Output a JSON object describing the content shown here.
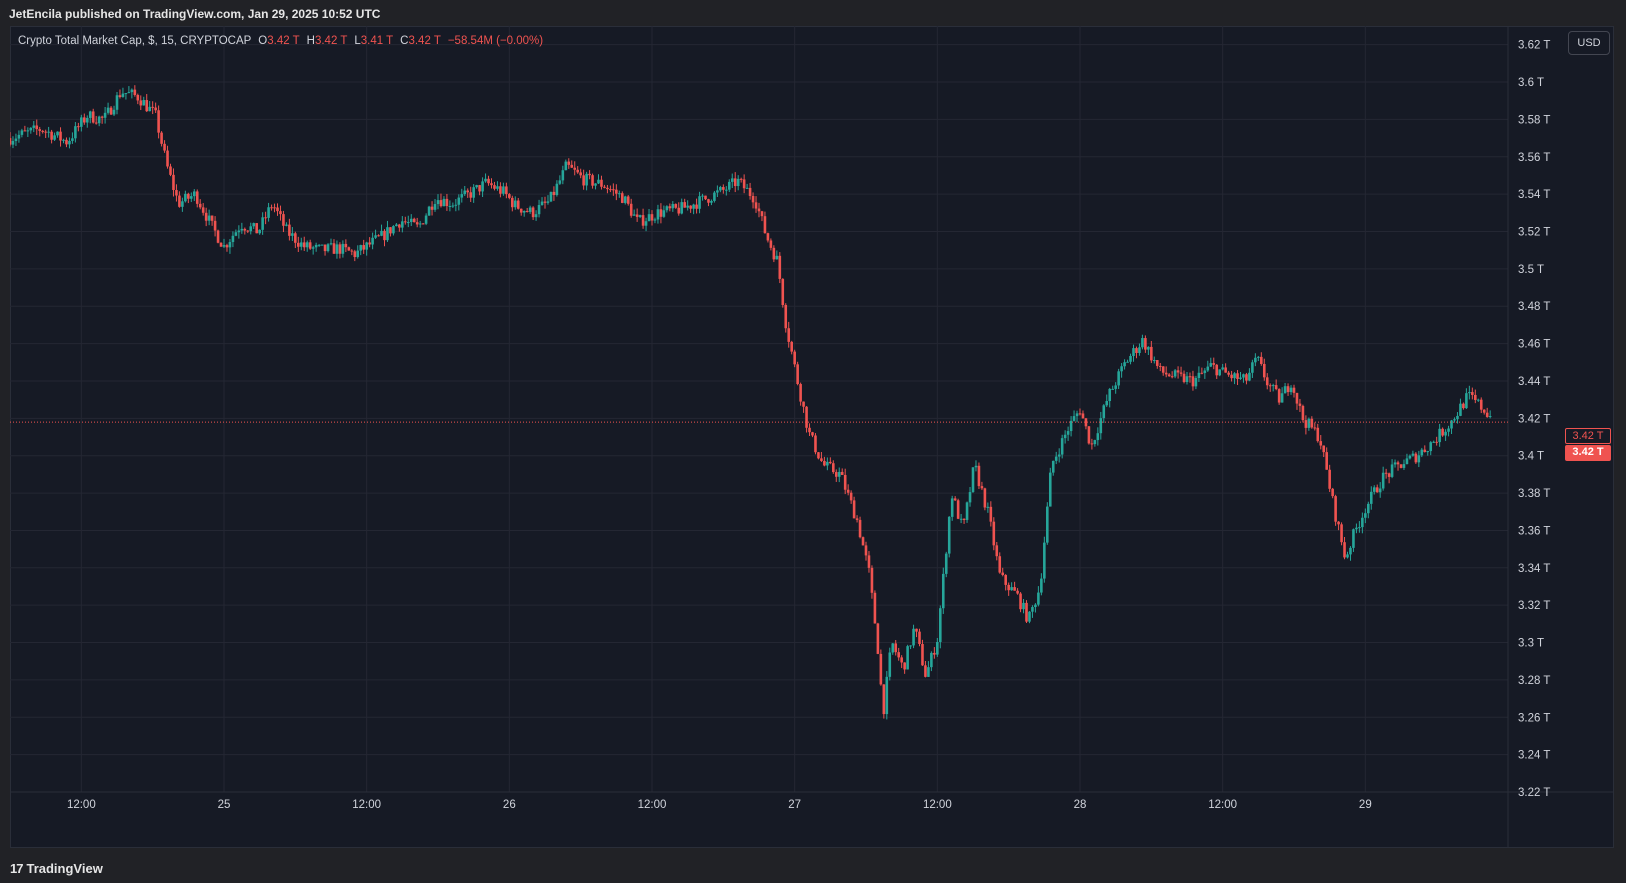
{
  "header": {
    "publish_text": "JetEncila published on TradingView.com, Jan 29, 2025 10:52 UTC"
  },
  "legend": {
    "symbol": "Crypto Total Market Cap, $, 15, CRYPTOCAP",
    "open_label": "O",
    "open": "3.42 T",
    "high_label": "H",
    "high": "3.42 T",
    "low_label": "L",
    "low": "3.41 T",
    "close_label": "C",
    "close": "3.42 T",
    "change": "−58.54M (−0.00%)"
  },
  "currency_button": "USD",
  "price_badges": {
    "last": "3.42 T",
    "current": "3.42 T"
  },
  "footer": {
    "brand": "TradingView",
    "logo": "17"
  },
  "colors": {
    "up": "#26a69a",
    "down": "#ef5350",
    "background": "#161a25",
    "grid": "#242733",
    "text": "#d1d4dc"
  },
  "chart_data": {
    "type": "candlestick",
    "title": "Crypto Total Market Cap, $, 15, CRYPTOCAP",
    "interval": "15",
    "grid": true,
    "y_unit": "T",
    "ylim": [
      3.22,
      3.63
    ],
    "y_ticks": [
      "3.62 T",
      "3.6 T",
      "3.58 T",
      "3.56 T",
      "3.54 T",
      "3.52 T",
      "3.5 T",
      "3.48 T",
      "3.46 T",
      "3.44 T",
      "3.42 T",
      "3.4 T",
      "3.38 T",
      "3.36 T",
      "3.34 T",
      "3.32 T",
      "3.3 T",
      "3.28 T",
      "3.26 T",
      "3.24 T",
      "3.22 T"
    ],
    "y_tick_values": [
      3.62,
      3.6,
      3.58,
      3.56,
      3.54,
      3.52,
      3.5,
      3.48,
      3.46,
      3.44,
      3.42,
      3.4,
      3.38,
      3.36,
      3.34,
      3.32,
      3.3,
      3.28,
      3.26,
      3.24,
      3.22
    ],
    "time_range_days": [
      24.25,
      29.5
    ],
    "x_ticks": [
      {
        "label": "12:00",
        "t": 24.5
      },
      {
        "label": "25",
        "t": 25.0
      },
      {
        "label": "12:00",
        "t": 25.5
      },
      {
        "label": "26",
        "t": 26.0
      },
      {
        "label": "12:00",
        "t": 26.5
      },
      {
        "label": "27",
        "t": 27.0
      },
      {
        "label": "12:00",
        "t": 27.5
      },
      {
        "label": "28",
        "t": 28.0
      },
      {
        "label": "12:00",
        "t": 28.5
      },
      {
        "label": "29",
        "t": 29.0
      }
    ],
    "last_price": 3.418,
    "series_close_path": [
      [
        24.25,
        3.57
      ],
      [
        24.36,
        3.575
      ],
      [
        24.45,
        3.568
      ],
      [
        24.52,
        3.582
      ],
      [
        24.58,
        3.58
      ],
      [
        24.64,
        3.595
      ],
      [
        24.7,
        3.592
      ],
      [
        24.76,
        3.582
      ],
      [
        24.8,
        3.555
      ],
      [
        24.84,
        3.535
      ],
      [
        24.9,
        3.54
      ],
      [
        24.96,
        3.522
      ],
      [
        25.0,
        3.512
      ],
      [
        25.06,
        3.524
      ],
      [
        25.12,
        3.52
      ],
      [
        25.17,
        3.535
      ],
      [
        25.22,
        3.52
      ],
      [
        25.28,
        3.512
      ],
      [
        25.34,
        3.51
      ],
      [
        25.4,
        3.511
      ],
      [
        25.46,
        3.508
      ],
      [
        25.51,
        3.513
      ],
      [
        25.56,
        3.518
      ],
      [
        25.62,
        3.526
      ],
      [
        25.68,
        3.522
      ],
      [
        25.74,
        3.538
      ],
      [
        25.8,
        3.535
      ],
      [
        25.86,
        3.54
      ],
      [
        25.92,
        3.546
      ],
      [
        25.98,
        3.541
      ],
      [
        26.02,
        3.534
      ],
      [
        26.08,
        3.53
      ],
      [
        26.14,
        3.536
      ],
      [
        26.18,
        3.548
      ],
      [
        26.2,
        3.555
      ],
      [
        26.26,
        3.548
      ],
      [
        26.33,
        3.545
      ],
      [
        26.4,
        3.538
      ],
      [
        26.45,
        3.525
      ],
      [
        26.52,
        3.53
      ],
      [
        26.6,
        3.532
      ],
      [
        26.68,
        3.537
      ],
      [
        26.75,
        3.542
      ],
      [
        26.8,
        3.547
      ],
      [
        26.86,
        3.538
      ],
      [
        26.9,
        3.518
      ],
      [
        26.94,
        3.504
      ],
      [
        26.97,
        3.47
      ],
      [
        27.01,
        3.44
      ],
      [
        27.05,
        3.412
      ],
      [
        27.1,
        3.395
      ],
      [
        27.16,
        3.39
      ],
      [
        27.22,
        3.365
      ],
      [
        27.26,
        3.338
      ],
      [
        27.29,
        3.3
      ],
      [
        27.31,
        3.262
      ],
      [
        27.34,
        3.3
      ],
      [
        27.38,
        3.286
      ],
      [
        27.42,
        3.308
      ],
      [
        27.46,
        3.282
      ],
      [
        27.5,
        3.302
      ],
      [
        27.55,
        3.38
      ],
      [
        27.59,
        3.36
      ],
      [
        27.63,
        3.395
      ],
      [
        27.68,
        3.368
      ],
      [
        27.72,
        3.335
      ],
      [
        27.78,
        3.325
      ],
      [
        27.82,
        3.312
      ],
      [
        27.86,
        3.33
      ],
      [
        27.9,
        3.395
      ],
      [
        27.96,
        3.415
      ],
      [
        28.0,
        3.425
      ],
      [
        28.04,
        3.405
      ],
      [
        28.1,
        3.432
      ],
      [
        28.16,
        3.45
      ],
      [
        28.22,
        3.462
      ],
      [
        28.28,
        3.445
      ],
      [
        28.34,
        3.442
      ],
      [
        28.4,
        3.44
      ],
      [
        28.46,
        3.448
      ],
      [
        28.52,
        3.443
      ],
      [
        28.58,
        3.44
      ],
      [
        28.62,
        3.452
      ],
      [
        28.66,
        3.438
      ],
      [
        28.7,
        3.43
      ],
      [
        28.74,
        3.44
      ],
      [
        28.78,
        3.42
      ],
      [
        28.84,
        3.41
      ],
      [
        28.89,
        3.372
      ],
      [
        28.93,
        3.345
      ],
      [
        28.96,
        3.358
      ],
      [
        29.0,
        3.372
      ],
      [
        29.06,
        3.388
      ],
      [
        29.12,
        3.395
      ],
      [
        29.18,
        3.4
      ],
      [
        29.24,
        3.408
      ],
      [
        29.3,
        3.418
      ],
      [
        29.36,
        3.432
      ],
      [
        29.4,
        3.427
      ],
      [
        29.44,
        3.421
      ]
    ]
  }
}
